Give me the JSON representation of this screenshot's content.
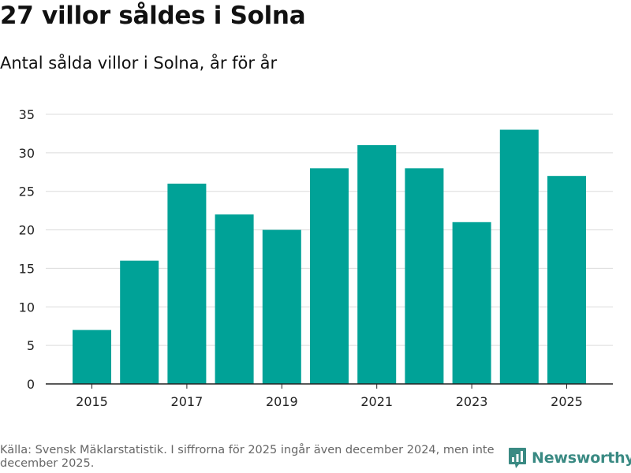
{
  "title": "27 villor såldes i Solna",
  "subtitle": "Antal sålda villor i Solna, år för år",
  "source": "Källa: Svensk Mäklarstatistik. I siffrorna för 2025 ingår även december 2024, men inte december 2025.",
  "brand": {
    "name": "Newsworthy",
    "icon": "bar-chart-pin-icon",
    "color": "#3a8a83"
  },
  "chart_data": {
    "type": "bar",
    "categories": [
      "2015",
      "2016",
      "2017",
      "2018",
      "2019",
      "2020",
      "2021",
      "2022",
      "2023",
      "2024",
      "2025"
    ],
    "values": [
      7,
      16,
      26,
      22,
      20,
      28,
      31,
      28,
      21,
      33,
      27
    ],
    "x_tick_labels": [
      "2015",
      "2017",
      "2019",
      "2021",
      "2023",
      "2025"
    ],
    "y_ticks": [
      0,
      5,
      10,
      15,
      20,
      25,
      30,
      35
    ],
    "ylim": [
      0,
      35
    ],
    "xlabel": "",
    "ylabel": "",
    "grid": true,
    "bar_color": "#00a297",
    "title": "27 villor såldes i Solna"
  }
}
